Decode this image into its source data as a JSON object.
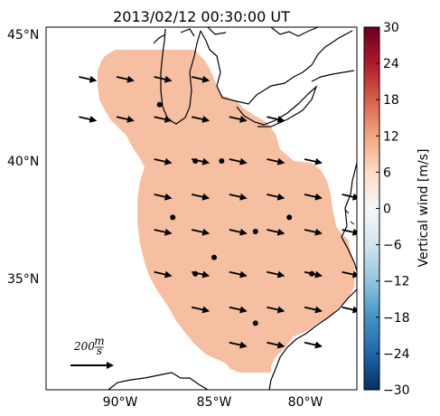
{
  "title": "2013/02/12 00:30:00 UT",
  "map": {
    "lat_labels": [
      "45°N",
      "40°N",
      "35°N"
    ],
    "lon_labels": [
      "90°W",
      "85°W",
      "80°W"
    ],
    "region_fill_color": "#f6bfa2",
    "coastline_color": "#000000"
  },
  "scale_arrow": {
    "value": "200",
    "unit_numerator": "m",
    "unit_denominator": "s"
  },
  "colorbar": {
    "label": "Vertical wind [m/s]",
    "min": -30,
    "max": 30,
    "ticks": [
      "30",
      "24",
      "18",
      "12",
      "6",
      "0",
      "−6",
      "−12",
      "−18",
      "−24",
      "−30"
    ],
    "colormap": "RdBu_r",
    "stops": [
      "#053061",
      "#2166ac",
      "#4393c3",
      "#92c5de",
      "#d1e5f0",
      "#f7f7f7",
      "#fddbc7",
      "#f4a582",
      "#d6604d",
      "#b2182b",
      "#67001f"
    ]
  },
  "stations": [
    {
      "lon": -87.9,
      "lat": 42.4
    },
    {
      "lon": -86.0,
      "lat": 40.0
    },
    {
      "lon": -84.6,
      "lat": 40.0
    },
    {
      "lon": -87.2,
      "lat": 37.6
    },
    {
      "lon": -82.8,
      "lat": 37.0
    },
    {
      "lon": -81.0,
      "lat": 37.6
    },
    {
      "lon": -85.0,
      "lat": 35.9
    },
    {
      "lon": -86.0,
      "lat": 35.2
    },
    {
      "lon": -79.8,
      "lat": 35.2
    },
    {
      "lon": -82.8,
      "lat": 33.1
    }
  ],
  "wind_vectors": {
    "direction_note": "all vectors point east-southeast",
    "rows": [
      {
        "lat": 43.5,
        "lons": [
          -92.0,
          -90.0,
          -88.0,
          -86.0
        ]
      },
      {
        "lat": 41.8,
        "lons": [
          -92.0,
          -90.0,
          -88.0,
          -86.0,
          -84.0,
          -82.0
        ]
      },
      {
        "lat": 40.0,
        "lons": [
          -88.0,
          -86.0,
          -84.0,
          -82.0,
          -80.0
        ]
      },
      {
        "lat": 38.5,
        "lons": [
          -88.0,
          -86.0,
          -84.0,
          -82.0,
          -80.0,
          -78.0
        ]
      },
      {
        "lat": 37.0,
        "lons": [
          -88.0,
          -86.0,
          -84.0,
          -82.0,
          -80.0,
          -78.0
        ]
      },
      {
        "lat": 35.2,
        "lons": [
          -88.0,
          -86.0,
          -84.0,
          -82.0,
          -80.0,
          -78.0,
          -76.0
        ]
      },
      {
        "lat": 33.7,
        "lons": [
          -86.0,
          -84.0,
          -82.0,
          -80.0,
          -78.0
        ]
      },
      {
        "lat": 32.2,
        "lons": [
          -84.0,
          -82.0,
          -80.0
        ]
      }
    ]
  }
}
